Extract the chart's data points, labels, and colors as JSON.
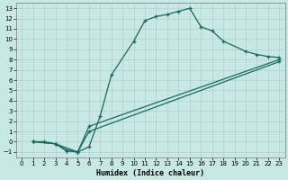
{
  "xlabel": "Humidex (Indice chaleur)",
  "bg_color": "#c8e8e4",
  "line_color": "#1a6860",
  "grid_color": "#a8ccc8",
  "xlim": [
    -0.5,
    23.5
  ],
  "ylim": [
    -1.5,
    13.5
  ],
  "xticks": [
    0,
    1,
    2,
    3,
    4,
    5,
    6,
    7,
    8,
    9,
    10,
    11,
    12,
    13,
    14,
    15,
    16,
    17,
    18,
    19,
    20,
    21,
    22,
    23
  ],
  "yticks": [
    -1,
    0,
    1,
    2,
    3,
    4,
    5,
    6,
    7,
    8,
    9,
    10,
    11,
    12,
    13
  ],
  "curve1_x": [
    1,
    2,
    3,
    5,
    6,
    7,
    8,
    10,
    11,
    12,
    13,
    14,
    15,
    16,
    17,
    18,
    20,
    21,
    22,
    23
  ],
  "curve1_y": [
    0,
    0,
    -0.2,
    -1.0,
    -0.5,
    2.5,
    6.5,
    9.8,
    11.8,
    12.2,
    12.4,
    12.7,
    13.0,
    11.2,
    10.8,
    9.8,
    8.8,
    8.5,
    8.3,
    8.2
  ],
  "curve2_x": [
    1,
    3,
    4,
    5,
    6,
    23
  ],
  "curve2_y": [
    0,
    -0.2,
    -0.8,
    -1.0,
    1.5,
    8.0
  ],
  "curve3_x": [
    1,
    3,
    4,
    5,
    6,
    23
  ],
  "curve3_y": [
    0,
    -0.2,
    -0.9,
    -1.0,
    1.0,
    7.8
  ]
}
